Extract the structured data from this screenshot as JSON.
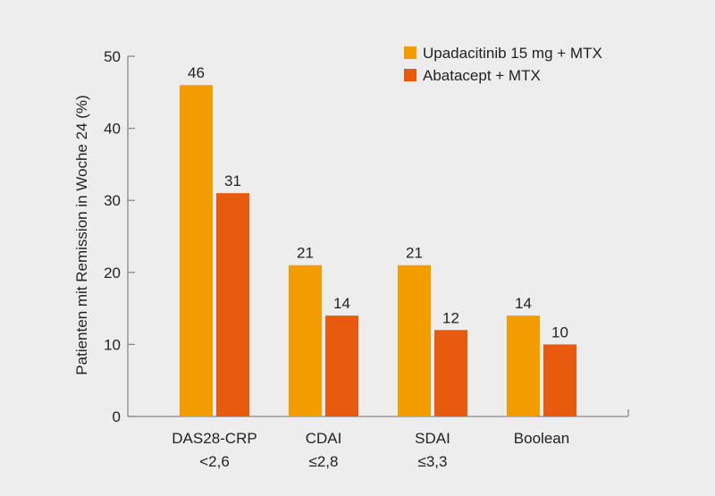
{
  "chart_data": {
    "type": "bar",
    "title": "",
    "xlabel": "",
    "ylabel": "Patienten mit Remission in Woche 24 (%)",
    "ylim": [
      0,
      50
    ],
    "yticks": [
      0,
      10,
      20,
      30,
      40,
      50
    ],
    "grid": false,
    "legend_position": "top-right",
    "categories": [
      [
        "DAS28-CRP",
        "<2,6"
      ],
      [
        "CDAI",
        "≤2,8"
      ],
      [
        "SDAI",
        "≤3,3"
      ],
      [
        "Boolean"
      ]
    ],
    "series": [
      {
        "name": "Upadacitinib 15 mg + MTX",
        "color": "#f29c00",
        "values": [
          46,
          21,
          21,
          14
        ]
      },
      {
        "name": "Abatacept + MTX",
        "color": "#e85b0f",
        "values": [
          31,
          14,
          12,
          10
        ]
      }
    ]
  }
}
